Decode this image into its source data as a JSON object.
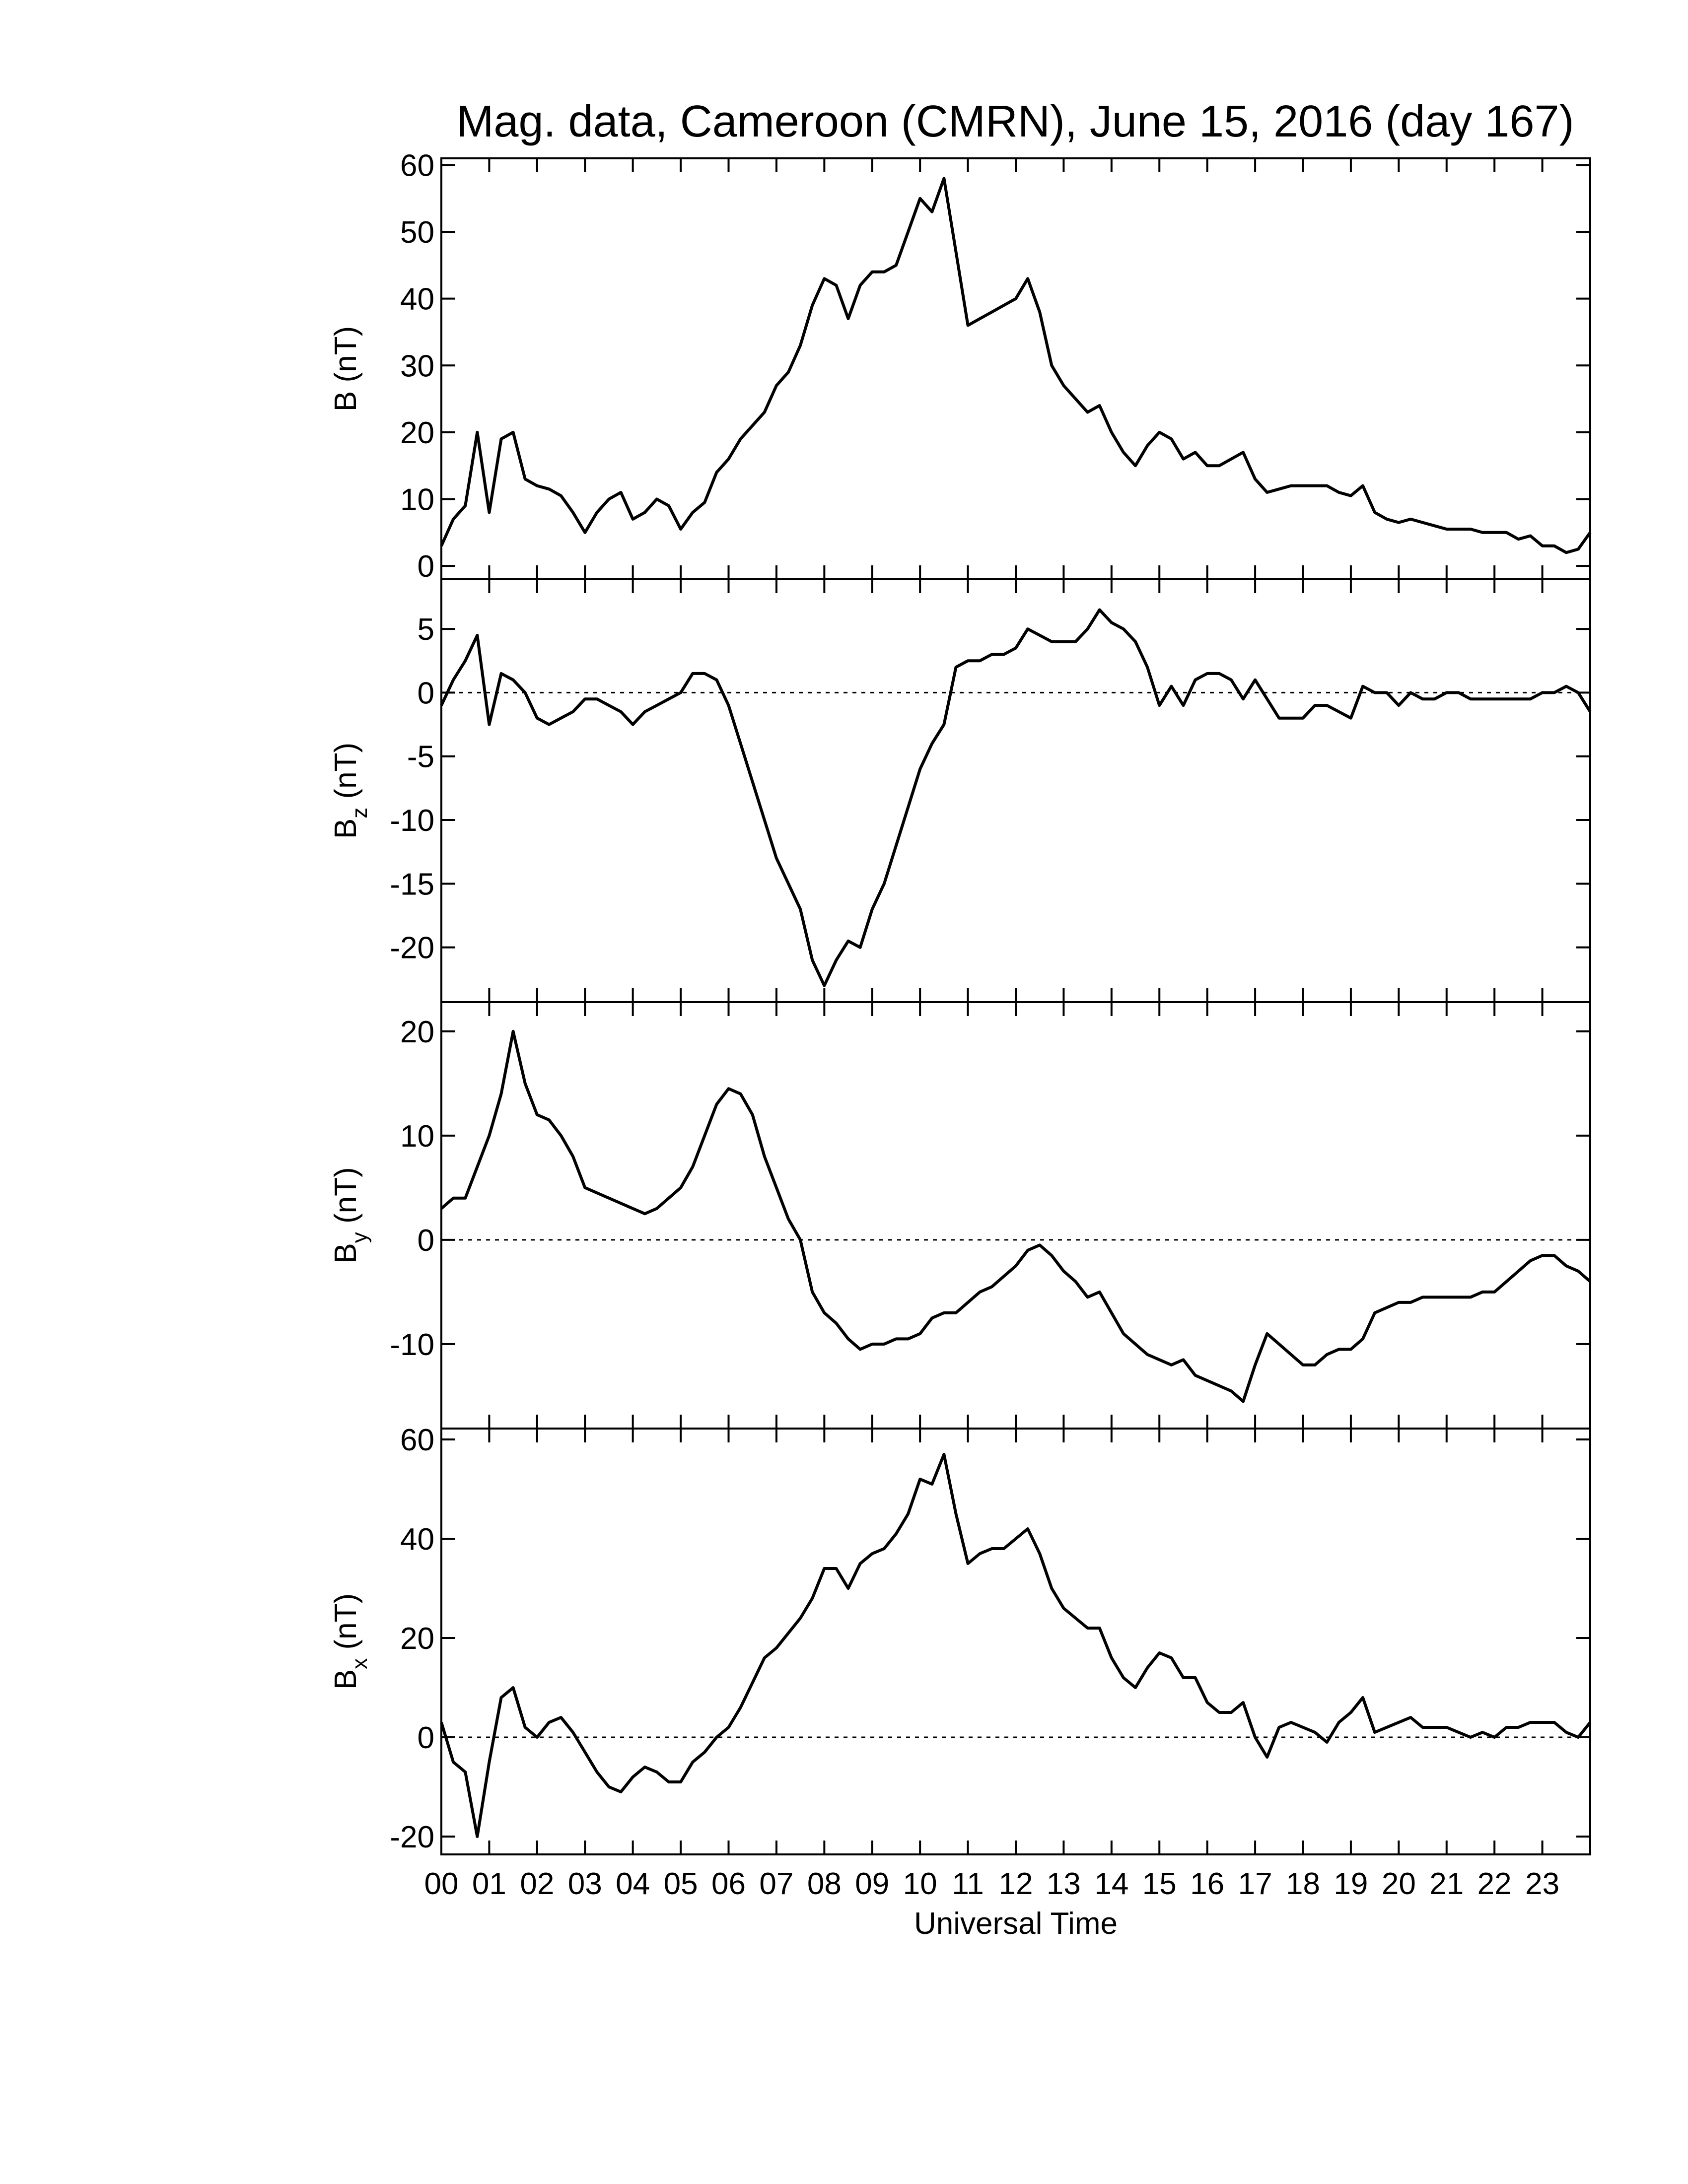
{
  "chart_data": [
    {
      "type": "line",
      "title": "Mag. data, Cameroon (CMRN), June 15, 2016 (day 167)",
      "ylabel": "B (nT)",
      "color": "#000000",
      "x": [
        0,
        0.25,
        0.5,
        0.75,
        1,
        1.25,
        1.5,
        1.75,
        2,
        2.25,
        2.5,
        2.75,
        3,
        3.25,
        3.5,
        3.75,
        4,
        4.25,
        4.5,
        4.75,
        5,
        5.25,
        5.5,
        5.75,
        6,
        6.25,
        6.5,
        6.75,
        7,
        7.25,
        7.5,
        7.75,
        8,
        8.25,
        8.5,
        8.75,
        9,
        9.25,
        9.5,
        9.75,
        10,
        10.25,
        10.5,
        10.75,
        11,
        11.25,
        11.5,
        11.75,
        12,
        12.25,
        12.5,
        12.75,
        13,
        13.25,
        13.5,
        13.75,
        14,
        14.25,
        14.5,
        14.75,
        15,
        15.25,
        15.5,
        15.75,
        16,
        16.25,
        16.5,
        16.75,
        17,
        17.25,
        17.5,
        17.75,
        18,
        18.25,
        18.5,
        18.75,
        19,
        19.25,
        19.5,
        19.75,
        20,
        20.25,
        20.5,
        20.75,
        21,
        21.25,
        21.5,
        21.75,
        22,
        22.25,
        22.5,
        22.75,
        23,
        23.25,
        23.5,
        23.75,
        24
      ],
      "values": [
        3,
        7,
        9,
        20,
        8,
        19,
        20,
        13,
        12,
        11.5,
        10.5,
        8,
        5,
        8,
        10,
        11,
        7,
        8,
        10,
        9,
        5.5,
        8,
        9.5,
        14,
        16,
        19,
        21,
        23,
        27,
        29,
        33,
        39,
        43,
        42,
        37,
        42,
        44,
        44,
        45,
        50,
        55,
        53,
        58,
        47,
        36,
        37,
        38,
        39,
        40,
        43,
        38,
        30,
        27,
        25,
        23,
        24,
        20,
        17,
        15,
        18,
        20,
        19,
        16,
        17,
        15,
        15,
        16,
        17,
        13,
        11,
        11.5,
        12,
        12,
        12,
        12,
        11,
        10.5,
        12,
        8,
        7,
        6.5,
        7,
        6.5,
        6,
        5.5,
        5.5,
        5.5,
        5,
        5,
        5,
        4,
        4.5,
        3,
        3,
        2,
        2.5,
        5
      ],
      "xlim": [
        0,
        24
      ],
      "ylim": [
        -2,
        61
      ],
      "yticks": [
        0,
        10,
        20,
        30,
        40,
        50,
        60
      ]
    },
    {
      "type": "line",
      "ylabel": "B",
      "ylabel_sub": "z",
      "ylabel_unit": " (nT)",
      "color": "#000000",
      "hline": 0,
      "x": [
        0,
        0.25,
        0.5,
        0.75,
        1,
        1.25,
        1.5,
        1.75,
        2,
        2.25,
        2.5,
        2.75,
        3,
        3.25,
        3.5,
        3.75,
        4,
        4.25,
        4.5,
        4.75,
        5,
        5.25,
        5.5,
        5.75,
        6,
        6.25,
        6.5,
        6.75,
        7,
        7.25,
        7.5,
        7.75,
        8,
        8.25,
        8.5,
        8.75,
        9,
        9.25,
        9.5,
        9.75,
        10,
        10.25,
        10.5,
        10.75,
        11,
        11.25,
        11.5,
        11.75,
        12,
        12.25,
        12.5,
        12.75,
        13,
        13.25,
        13.5,
        13.75,
        14,
        14.25,
        14.5,
        14.75,
        15,
        15.25,
        15.5,
        15.75,
        16,
        16.25,
        16.5,
        16.75,
        17,
        17.25,
        17.5,
        17.75,
        18,
        18.25,
        18.5,
        18.75,
        19,
        19.25,
        19.5,
        19.75,
        20,
        20.25,
        20.5,
        20.75,
        21,
        21.25,
        21.5,
        21.75,
        22,
        22.25,
        22.5,
        22.75,
        23,
        23.25,
        23.5,
        23.75,
        24
      ],
      "values": [
        -1,
        1,
        2.5,
        4.5,
        -2.5,
        1.5,
        1,
        0,
        -2,
        -2.5,
        -2,
        -1.5,
        -0.5,
        -0.5,
        -1,
        -1.5,
        -2.5,
        -1.5,
        -1,
        -0.5,
        0,
        1.5,
        1.5,
        1,
        -1,
        -4,
        -7,
        -10,
        -13,
        -15,
        -17,
        -21,
        -23,
        -21,
        -19.5,
        -20,
        -17,
        -15,
        -12,
        -9,
        -6,
        -4,
        -2.5,
        2,
        2.5,
        2.5,
        3,
        3,
        3.5,
        5,
        4.5,
        4,
        4,
        4,
        5,
        6.5,
        5.5,
        5,
        4,
        2,
        -1,
        0.5,
        -1,
        1,
        1.5,
        1.5,
        1,
        -0.5,
        1,
        -0.5,
        -2,
        -2,
        -2,
        -1,
        -1,
        -1.5,
        -2,
        0.5,
        0,
        0,
        -1,
        0,
        -0.5,
        -0.5,
        0,
        0,
        -0.5,
        -0.5,
        -0.5,
        -0.5,
        -0.5,
        -0.5,
        0,
        0,
        0.5,
        0,
        -1.5
      ],
      "xlim": [
        0,
        24
      ],
      "ylim": [
        -24.3,
        8.9
      ],
      "yticks": [
        -20,
        -15,
        -10,
        -5,
        0,
        5
      ]
    },
    {
      "type": "line",
      "ylabel": "B",
      "ylabel_sub": "y",
      "ylabel_unit": " (nT)",
      "color": "#000000",
      "hline": 0,
      "x": [
        0,
        0.25,
        0.5,
        0.75,
        1,
        1.25,
        1.5,
        1.75,
        2,
        2.25,
        2.5,
        2.75,
        3,
        3.25,
        3.5,
        3.75,
        4,
        4.25,
        4.5,
        4.75,
        5,
        5.25,
        5.5,
        5.75,
        6,
        6.25,
        6.5,
        6.75,
        7,
        7.25,
        7.5,
        7.75,
        8,
        8.25,
        8.5,
        8.75,
        9,
        9.25,
        9.5,
        9.75,
        10,
        10.25,
        10.5,
        10.75,
        11,
        11.25,
        11.5,
        11.75,
        12,
        12.25,
        12.5,
        12.75,
        13,
        13.25,
        13.5,
        13.75,
        14,
        14.25,
        14.5,
        14.75,
        15,
        15.25,
        15.5,
        15.75,
        16,
        16.25,
        16.5,
        16.75,
        17,
        17.25,
        17.5,
        17.75,
        18,
        18.25,
        18.5,
        18.75,
        19,
        19.25,
        19.5,
        19.75,
        20,
        20.25,
        20.5,
        20.75,
        21,
        21.25,
        21.5,
        21.75,
        22,
        22.25,
        22.5,
        22.75,
        23,
        23.25,
        23.5,
        23.75,
        24
      ],
      "values": [
        3,
        4,
        4,
        7,
        10,
        14,
        20,
        15,
        12,
        11.5,
        10,
        8,
        5,
        4.5,
        4,
        3.5,
        3,
        2.5,
        3,
        4,
        5,
        7,
        10,
        13,
        14.5,
        14,
        12,
        8,
        5,
        2,
        0,
        -5,
        -7,
        -8,
        -9.5,
        -10.5,
        -10,
        -10,
        -9.5,
        -9.5,
        -9,
        -7.5,
        -7,
        -7,
        -6,
        -5,
        -4.5,
        -3.5,
        -2.5,
        -1,
        -0.5,
        -1.5,
        -3,
        -4,
        -5.5,
        -5,
        -7,
        -9,
        -10,
        -11,
        -11.5,
        -12,
        -11.5,
        -13,
        -13.5,
        -14,
        -14.5,
        -15.5,
        -12,
        -9,
        -10,
        -11,
        -12,
        -12,
        -11,
        -10.5,
        -10.5,
        -9.5,
        -7,
        -6.5,
        -6,
        -6,
        -5.5,
        -5.5,
        -5.5,
        -5.5,
        -5.5,
        -5,
        -5,
        -4,
        -3,
        -2,
        -1.5,
        -1.5,
        -2.5,
        -3,
        -4
      ],
      "xlim": [
        0,
        24
      ],
      "ylim": [
        -18.1,
        22.8
      ],
      "yticks": [
        -10,
        0,
        10,
        20
      ]
    },
    {
      "type": "line",
      "ylabel": "B",
      "ylabel_sub": "x",
      "ylabel_unit": " (nT)",
      "xlabel": "Universal Time",
      "color": "#000000",
      "hline": 0,
      "x": [
        0,
        0.25,
        0.5,
        0.75,
        1,
        1.25,
        1.5,
        1.75,
        2,
        2.25,
        2.5,
        2.75,
        3,
        3.25,
        3.5,
        3.75,
        4,
        4.25,
        4.5,
        4.75,
        5,
        5.25,
        5.5,
        5.75,
        6,
        6.25,
        6.5,
        6.75,
        7,
        7.25,
        7.5,
        7.75,
        8,
        8.25,
        8.5,
        8.75,
        9,
        9.25,
        9.5,
        9.75,
        10,
        10.25,
        10.5,
        10.75,
        11,
        11.25,
        11.5,
        11.75,
        12,
        12.25,
        12.5,
        12.75,
        13,
        13.25,
        13.5,
        13.75,
        14,
        14.25,
        14.5,
        14.75,
        15,
        15.25,
        15.5,
        15.75,
        16,
        16.25,
        16.5,
        16.75,
        17,
        17.25,
        17.5,
        17.75,
        18,
        18.25,
        18.5,
        18.75,
        19,
        19.25,
        19.5,
        19.75,
        20,
        20.25,
        20.5,
        20.75,
        21,
        21.25,
        21.5,
        21.75,
        22,
        22.25,
        22.5,
        22.75,
        23,
        23.25,
        23.5,
        23.75,
        24
      ],
      "values": [
        3,
        -5,
        -7,
        -20,
        -5,
        8,
        10,
        2,
        0,
        3,
        4,
        1,
        -3,
        -7,
        -10,
        -11,
        -8,
        -6,
        -7,
        -9,
        -9,
        -5,
        -3,
        0,
        2,
        6,
        11,
        16,
        18,
        21,
        24,
        28,
        34,
        34,
        30,
        35,
        37,
        38,
        41,
        45,
        52,
        51,
        57,
        45,
        35,
        37,
        38,
        38,
        40,
        42,
        37,
        30,
        26,
        24,
        22,
        22,
        16,
        12,
        10,
        14,
        17,
        16,
        12,
        12,
        7,
        5,
        5,
        7,
        0,
        -4,
        2,
        3,
        2,
        1,
        -1,
        3,
        5,
        8,
        1,
        2,
        3,
        4,
        2,
        2,
        2,
        1,
        0,
        1,
        0,
        2,
        2,
        3,
        3,
        3,
        1,
        0,
        3
      ],
      "xlim": [
        0,
        24
      ],
      "ylim": [
        -23.6,
        62.2
      ],
      "yticks": [
        -20,
        0,
        20,
        40,
        60
      ],
      "xticks": [
        {
          "value": 0,
          "label": "00"
        },
        {
          "value": 1,
          "label": "01"
        },
        {
          "value": 2,
          "label": "02"
        },
        {
          "value": 3,
          "label": "03"
        },
        {
          "value": 4,
          "label": "04"
        },
        {
          "value": 5,
          "label": "05"
        },
        {
          "value": 6,
          "label": "06"
        },
        {
          "value": 7,
          "label": "07"
        },
        {
          "value": 8,
          "label": "08"
        },
        {
          "value": 9,
          "label": "09"
        },
        {
          "value": 10,
          "label": "10"
        },
        {
          "value": 11,
          "label": "11"
        },
        {
          "value": 12,
          "label": "12"
        },
        {
          "value": 13,
          "label": "13"
        },
        {
          "value": 14,
          "label": "14"
        },
        {
          "value": 15,
          "label": "15"
        },
        {
          "value": 16,
          "label": "16"
        },
        {
          "value": 17,
          "label": "17"
        },
        {
          "value": 18,
          "label": "18"
        },
        {
          "value": 19,
          "label": "19"
        },
        {
          "value": 20,
          "label": "20"
        },
        {
          "value": 21,
          "label": "21"
        },
        {
          "value": 22,
          "label": "22"
        },
        {
          "value": 23,
          "label": "23"
        }
      ]
    }
  ]
}
